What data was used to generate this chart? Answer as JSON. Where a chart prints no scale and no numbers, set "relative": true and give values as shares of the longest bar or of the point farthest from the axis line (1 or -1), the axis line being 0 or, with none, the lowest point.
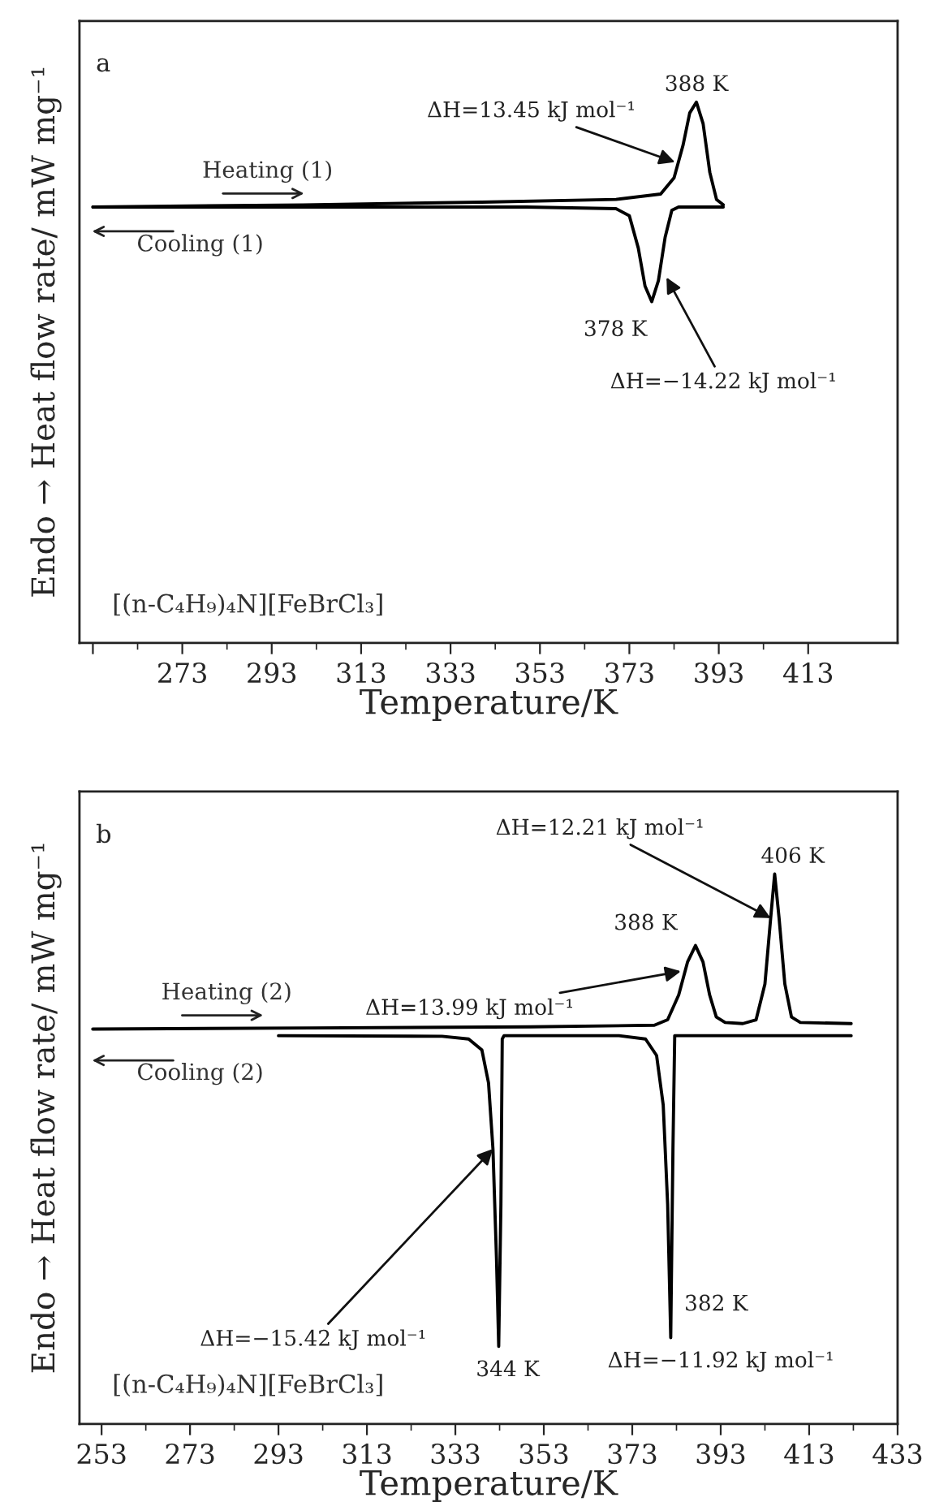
{
  "chart_data": [
    {
      "type": "line",
      "relative": true,
      "xlabel": "Temperature/K",
      "ylabel": "Endo → Heat flow rate/ mW mg⁻¹",
      "legend": false,
      "tick_labels": "x",
      "xlim": [
        250,
        433
      ],
      "xticks": [
        {
          "value": 253,
          "label": null
        },
        273,
        293,
        313,
        333,
        353,
        373,
        393,
        413
      ],
      "series": [
        {
          "name": "Heating (1)",
          "color": "#000000",
          "x": [
            253,
            300,
            340,
            370,
            380,
            383,
            385,
            386.5,
            388,
            389.5,
            391,
            392.5,
            394
          ],
          "values": [
            0.806,
            0.81,
            0.815,
            0.82,
            0.83,
            0.86,
            0.92,
            0.98,
            1.0,
            0.96,
            0.87,
            0.82,
            0.81
          ]
        },
        {
          "name": "Cooling (1)",
          "color": "#000000",
          "x": [
            253,
            350,
            370,
            373,
            375,
            376.5,
            378,
            379.5,
            381,
            382.5,
            384,
            394
          ],
          "values": [
            0.806,
            0.806,
            0.803,
            0.79,
            0.73,
            0.66,
            0.631,
            0.67,
            0.75,
            0.8,
            0.806,
            0.806
          ]
        }
      ],
      "annotations": [
        "a",
        {
          "text": "388 K",
          "x": 388,
          "y": 1.0
        },
        {
          "text": "ΔH=13.45 kJ mol⁻¹",
          "x": 383.2,
          "y": 0.889
        },
        {
          "text": "378 K",
          "x": 378,
          "y": 0.631
        },
        {
          "text": "ΔH=−14.22 kJ mol⁻¹",
          "x": 381.3,
          "y": 0.676
        },
        "[(n-C₄H₉)₄N][FeBrCl₃]"
      ]
    },
    {
      "type": "line",
      "relative": true,
      "xlabel": "Temperature/K",
      "ylabel": "Endo → Heat flow rate/ mW mg⁻¹",
      "legend": false,
      "tick_labels": "x",
      "xlim": [
        248,
        433
      ],
      "xticks": [
        253,
        273,
        293,
        313,
        333,
        353,
        373,
        393,
        413,
        433
      ],
      "series": [
        {
          "name": "Heating (2)",
          "color": "#000000",
          "x": [
            251,
            300,
            350,
            378,
            381,
            383.5,
            385.5,
            387.3,
            389,
            390.5,
            392,
            394,
            398,
            401,
            403,
            404.3,
            405.2,
            406.2,
            407.5,
            409,
            411,
            422.5
          ],
          "values": [
            0.718,
            0.72,
            0.722,
            0.725,
            0.735,
            0.78,
            0.84,
            0.87,
            0.84,
            0.78,
            0.74,
            0.73,
            0.728,
            0.735,
            0.8,
            0.92,
            1.0,
            0.92,
            0.8,
            0.74,
            0.73,
            0.728
          ]
        },
        {
          "name": "Cooling (2)",
          "color": "#000000",
          "x": [
            293,
            330,
            336,
            339,
            340.5,
            341.5,
            342.3,
            342.8,
            343.3,
            343.6,
            344,
            370,
            376,
            378.5,
            380,
            381,
            381.7,
            382.2,
            382.6,
            422.5
          ],
          "values": [
            0.706,
            0.705,
            0.7,
            0.68,
            0.62,
            0.5,
            0.3,
            0.141,
            0.4,
            0.7,
            0.706,
            0.706,
            0.7,
            0.67,
            0.58,
            0.4,
            0.157,
            0.5,
            0.706,
            0.706
          ]
        }
      ],
      "annotations": [
        "b",
        {
          "text": "406 K",
          "x": 405.2,
          "y": 1.0
        },
        {
          "text": "ΔH=12.21 kJ mol⁻¹",
          "x": 404.3,
          "y": 0.92
        },
        {
          "text": "388 K",
          "x": 387.3,
          "y": 0.87
        },
        {
          "text": "ΔH=13.99 kJ mol⁻¹",
          "x": 384.0,
          "y": 0.823
        },
        {
          "text": "ΔH=−15.42 kJ mol⁻¹",
          "x": 341.5,
          "y": 0.5
        },
        {
          "text": "344 K",
          "x": 342.8,
          "y": 0.141
        },
        {
          "text": "382 K",
          "x": 381.7,
          "y": 0.157
        },
        {
          "text": "ΔH=−11.92 kJ mol⁻¹",
          "x": 381.7,
          "y": 0.157
        },
        "[(n-C₄H₉)₄N][FeBrCl₃]"
      ]
    }
  ]
}
